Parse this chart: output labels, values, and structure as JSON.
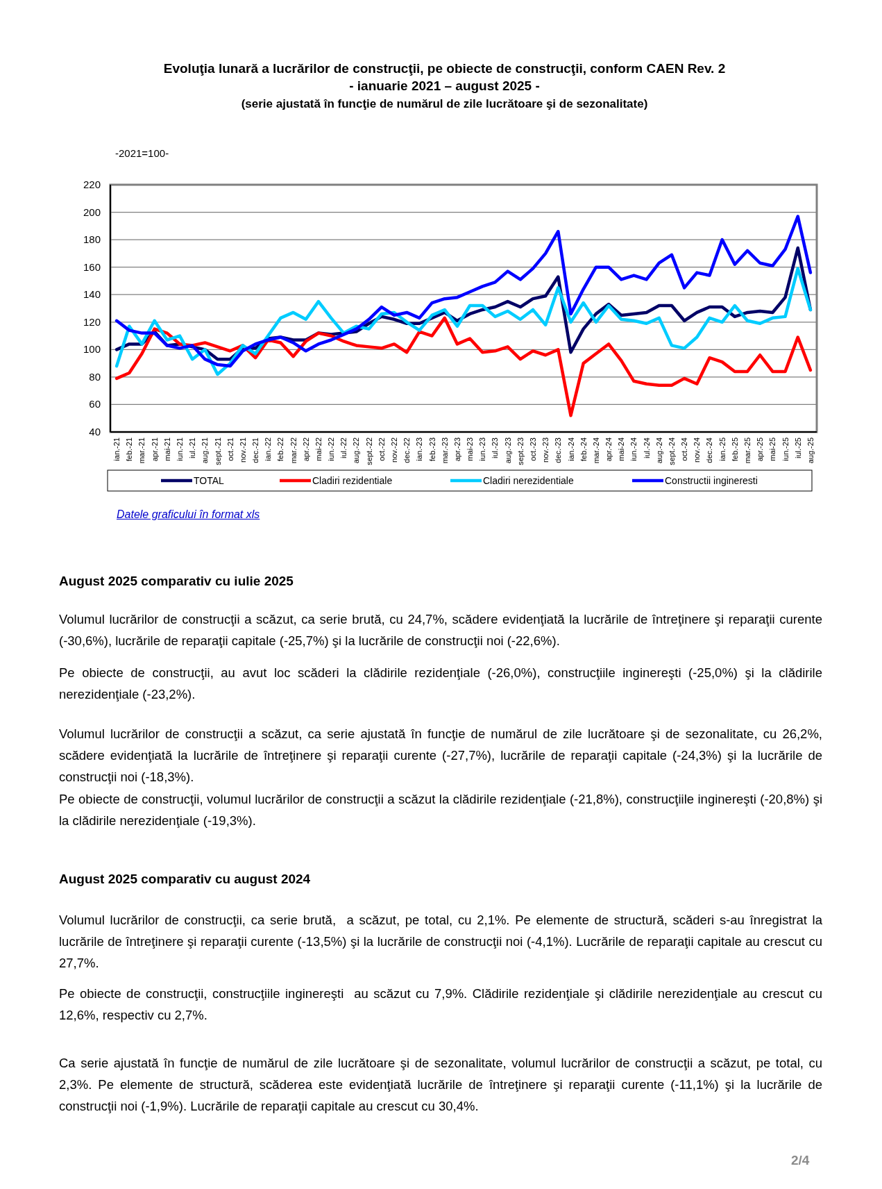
{
  "chart_data": {
    "type": "line",
    "title": "Evoluţia lunară a lucrărilor de construcţii, pe obiecte de construcţii, conform CAEN Rev. 2",
    "subtitle": "- ianuarie 2021 – august 2025 -\n(serie ajustată în funcţie de numărul de zile lucrătoare şi de sezonalitate)",
    "ylabel": "-2021=100-",
    "categories": [
      "ian.-21",
      "feb.-21",
      "mar.-21",
      "apr.-21",
      "mai-21",
      "iun.-21",
      "iul.-21",
      "aug.-21",
      "sept.-21",
      "oct.-21",
      "nov.-21",
      "dec.-21",
      "ian.-22",
      "feb.-22",
      "mar.-22",
      "apr.-22",
      "mai-22",
      "iun.-22",
      "iul.-22",
      "aug.-22",
      "sept.-22",
      "oct.-22",
      "nov.-22",
      "dec.-22",
      "ian.-23",
      "feb.-23",
      "mar.-23",
      "apr.-23",
      "mai-23",
      "iun.-23",
      "iul.-23",
      "aug.-23",
      "sept.-23",
      "oct.-23",
      "nov.-23",
      "dec.-23",
      "ian.-24",
      "feb.-24",
      "mar.-24",
      "apr.-24",
      "mai-24",
      "iun.-24",
      "iul.-24",
      "aug.-24",
      "sept.-24",
      "oct.-24",
      "nov.-24",
      "dec.-24",
      "ian.-25",
      "feb.-25",
      "mar.-25",
      "apr.-25",
      "mai-25",
      "iun.-25",
      "iul.-25",
      "aug.-25"
    ],
    "series": [
      {
        "name": "TOTAL",
        "color": "#000066",
        "values": [
          100,
          104,
          104,
          113,
          103,
          104,
          102,
          100,
          93,
          93,
          101,
          101,
          108,
          109,
          107,
          107,
          112,
          111,
          112,
          113,
          119,
          124,
          122,
          119,
          119,
          123,
          127,
          121,
          126,
          129,
          131,
          135,
          131,
          137,
          139,
          153,
          98,
          115,
          126,
          133,
          125,
          126,
          127,
          132,
          132,
          121,
          127,
          131,
          131,
          124,
          127,
          128,
          127,
          138,
          174,
          129
        ]
      },
      {
        "name": "Cladiri rezidentiale",
        "color": "#ff0000",
        "values": [
          79,
          83,
          97,
          115,
          112,
          104,
          103,
          105,
          102,
          99,
          103,
          94,
          107,
          105,
          95,
          106,
          112,
          110,
          106,
          103,
          102,
          101,
          104,
          98,
          113,
          110,
          123,
          104,
          108,
          98,
          99,
          102,
          93,
          99,
          96,
          100,
          52,
          90,
          97,
          104,
          92,
          77,
          75,
          74,
          74,
          79,
          75,
          94,
          91,
          84,
          84,
          96,
          84,
          84,
          109,
          85
        ]
      },
      {
        "name": "Cladiri nerezidentiale",
        "color": "#00ccff",
        "values": [
          88,
          117,
          104,
          121,
          107,
          110,
          93,
          100,
          82,
          90,
          103,
          97,
          110,
          123,
          127,
          122,
          135,
          123,
          112,
          117,
          115,
          126,
          127,
          120,
          114,
          125,
          129,
          117,
          132,
          132,
          124,
          128,
          122,
          129,
          118,
          145,
          120,
          134,
          120,
          132,
          122,
          121,
          119,
          123,
          103,
          101,
          109,
          123,
          120,
          132,
          121,
          119,
          123,
          124,
          159,
          129
        ]
      },
      {
        "name": "Constructii ingineresti",
        "color": "#0000ff",
        "values": [
          121,
          114,
          112,
          112,
          103,
          101,
          103,
          93,
          89,
          88,
          99,
          104,
          107,
          109,
          105,
          99,
          104,
          107,
          111,
          115,
          122,
          131,
          125,
          127,
          123,
          134,
          137,
          138,
          142,
          146,
          149,
          157,
          151,
          159,
          170,
          186,
          126,
          144,
          160,
          160,
          151,
          154,
          151,
          163,
          169,
          145,
          156,
          154,
          180,
          162,
          172,
          163,
          161,
          173,
          197,
          156
        ]
      }
    ],
    "ylim": [
      40,
      220
    ],
    "yticks": [
      40,
      60,
      80,
      100,
      120,
      140,
      160,
      180,
      200,
      220
    ],
    "grid": "y",
    "legend": "bottom",
    "line_style": "solid",
    "marker": "none",
    "annotations": [
      "Datele graficului în format xls",
      "August 2025 comparativ cu iulie 2025",
      "Volumul lucrărilor de construcţii a scăzut, ca serie brută, cu 24,7%, scădere evidenţiată la lucrările de întreţinere şi reparaţii curente (-30,6%), lucrările de reparaţii capitale (-25,7%) şi la lucrările de construcţii noi (-22,6%).",
      "Pe obiecte de construcţii, au avut loc scăderi la clădirile rezidenţiale (-26,0%), construcţiile inginereşti (-25,0%) şi la clădirile nerezidenţiale (-23,2%).",
      "Volumul lucrărilor de construcţii a scăzut, ca serie ajustată în funcţie de numărul de zile lucrătoare şi de sezonalitate, cu 26,2%, scădere evidenţiată la lucrările de întreţinere şi reparaţii curente (-27,7%), lucrările de reparaţii capitale (-24,3%) şi la lucrările de construcţii noi (-18,3%).",
      "Pe obiecte de construcţii, volumul lucrărilor de construcţii a scăzut la clădirile rezidenţiale (-21,8%), construcţiile inginereşti (-20,8%) şi la clădirile nerezidenţiale (-19,3%).",
      "August 2025 comparativ cu august 2024",
      "Volumul lucrărilor de construcţii, ca serie brută,  a scăzut, pe total, cu 2,1%. Pe elemente de structură, scăderi s-au înregistrat la lucrările de întreţinere şi reparaţii curente (-13,5%) şi la lucrările de construcţii noi (-4,1%). Lucrările de reparaţii capitale au crescut cu 27,7%.",
      "Pe obiecte de construcţii, construcţiile inginereşti  au scăzut cu 7,9%. Clădirile rezidenţiale şi clădirile nerezidenţiale au crescut cu 12,6%, respectiv cu 2,7%.",
      "Ca serie ajustată în funcţie de numărul de zile lucrătoare şi de sezonalitate, volumul lucrărilor de construcţii a scăzut, pe total, cu 2,3%. Pe elemente de structură, scăderea este evidenţiată lucrările de întreţinere şi reparaţii curente (-11,1%) şi la lucrările de construcţii noi (-1,9%). Lucrările de reparaţii capitale au crescut cu 30,4%.",
      "2/4"
    ]
  }
}
